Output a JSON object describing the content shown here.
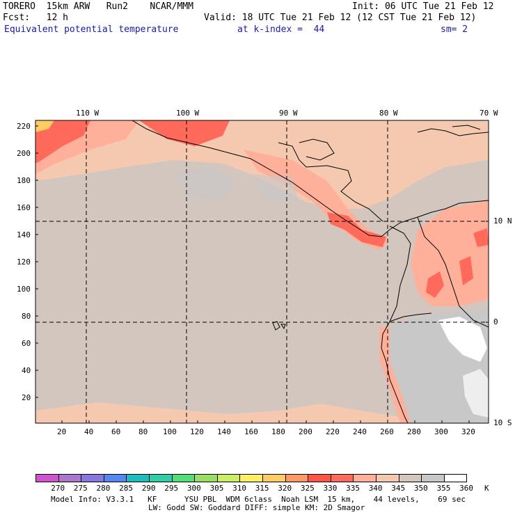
{
  "header": {
    "model": "TORERO  15km ARW   Run2    NCAR/MMM",
    "init": "Init: 06 UTC Tue 21 Feb 12",
    "fcst": "Fcst:   12 h",
    "valid": "Valid: 18 UTC Tue 21 Feb 12 (12 CST Tue 21 Feb 12)",
    "field": "Equivalent potential temperature",
    "level": "at k-index =  44",
    "smoothing": "sm= 2"
  },
  "map": {
    "lon_labels": [
      "110 W",
      "100 W",
      "90 W",
      "80 W",
      "70 W"
    ],
    "lat_labels": [
      "10 N",
      "0",
      "10 S"
    ],
    "y_ticks": [
      "220",
      "200",
      "180",
      "160",
      "140",
      "120",
      "100",
      "80",
      "60",
      "40",
      "20"
    ],
    "x_ticks": [
      "20",
      "40",
      "60",
      "80",
      "100",
      "120",
      "140",
      "160",
      "180",
      "200",
      "220",
      "240",
      "260",
      "280",
      "300",
      "320"
    ]
  },
  "colorbar": {
    "labels": [
      "270",
      "275",
      "280",
      "285",
      "290",
      "295",
      "300",
      "305",
      "310",
      "315",
      "320",
      "325",
      "330",
      "335",
      "340",
      "345",
      "350",
      "355",
      "360"
    ],
    "unit": "K",
    "colors": [
      "#cc55cc",
      "#aa77cc",
      "#8877dd",
      "#5588ee",
      "#22bbbb",
      "#33ccaa",
      "#55dd77",
      "#99dd66",
      "#ccee66",
      "#ffee66",
      "#ffcc66",
      "#ff9966",
      "#ff5544",
      "#ff6a5a",
      "#ffb09a",
      "#f5c8b0",
      "#d2c6bf",
      "#c8c8c8",
      "#ffffff"
    ]
  },
  "footer": {
    "line1": "Model Info: V3.3.1   KF      YSU PBL  WDM 6class  Noah LSM  15 km,    44 levels,    69 sec",
    "line2": "LW: Godd SW: Goddard DIFF: simple KM: 2D Smagor"
  }
}
